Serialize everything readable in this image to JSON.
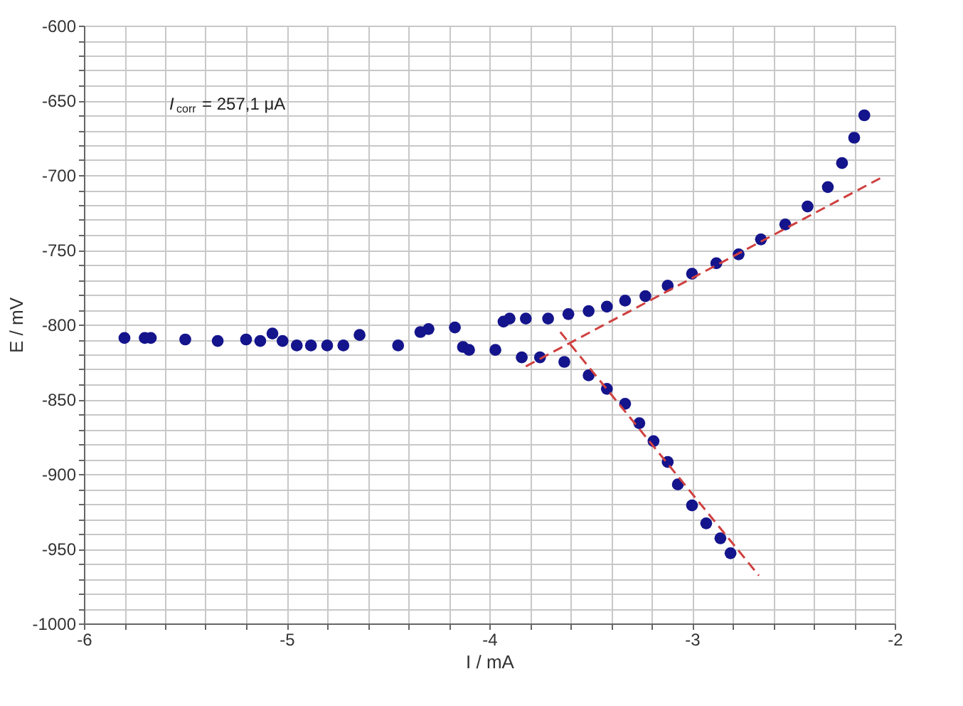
{
  "chart_data": {
    "type": "scatter",
    "xlabel": "I / mA",
    "ylabel": "E / mV",
    "annotations": [
      "I$_{corr}$ = 257,1 μA"
    ],
    "xlim": [
      -6,
      -2
    ],
    "ylim": [
      -1000,
      -600
    ],
    "xticks": [
      -6,
      {
        "value": -5.8,
        "label": null
      },
      {
        "value": -5.6,
        "label": null
      },
      {
        "value": -5.4,
        "label": null
      },
      {
        "value": -5.2,
        "label": null
      },
      -5,
      {
        "value": -4.8,
        "label": null
      },
      {
        "value": -4.6,
        "label": null
      },
      {
        "value": -4.4,
        "label": null
      },
      {
        "value": -4.2,
        "label": null
      },
      -4,
      {
        "value": -3.8,
        "label": null
      },
      {
        "value": -3.6,
        "label": null
      },
      {
        "value": -3.4,
        "label": null
      },
      {
        "value": -3.2,
        "label": null
      },
      -3,
      {
        "value": -2.8,
        "label": null
      },
      {
        "value": -2.6,
        "label": null
      },
      {
        "value": -2.4,
        "label": null
      },
      {
        "value": -2.2,
        "label": null
      },
      -2
    ],
    "yticks": [
      -1000,
      {
        "value": -990,
        "label": null
      },
      {
        "value": -980,
        "label": null
      },
      {
        "value": -970,
        "label": null
      },
      {
        "value": -960,
        "label": null
      },
      -950,
      {
        "value": -940,
        "label": null
      },
      {
        "value": -930,
        "label": null
      },
      {
        "value": -920,
        "label": null
      },
      {
        "value": -910,
        "label": null
      },
      -900,
      {
        "value": -890,
        "label": null
      },
      {
        "value": -880,
        "label": null
      },
      {
        "value": -870,
        "label": null
      },
      {
        "value": -860,
        "label": null
      },
      -850,
      {
        "value": -840,
        "label": null
      },
      {
        "value": -830,
        "label": null
      },
      {
        "value": -820,
        "label": null
      },
      {
        "value": -810,
        "label": null
      },
      -800,
      {
        "value": -790,
        "label": null
      },
      {
        "value": -780,
        "label": null
      },
      {
        "value": -770,
        "label": null
      },
      {
        "value": -760,
        "label": null
      },
      -750,
      {
        "value": -740,
        "label": null
      },
      {
        "value": -730,
        "label": null
      },
      {
        "value": -720,
        "label": null
      },
      {
        "value": -710,
        "label": null
      },
      -700,
      {
        "value": -690,
        "label": null
      },
      {
        "value": -680,
        "label": null
      },
      {
        "value": -670,
        "label": null
      },
      {
        "value": -660,
        "label": null
      },
      -650,
      {
        "value": -640,
        "label": null
      },
      {
        "value": -630,
        "label": null
      },
      {
        "value": -620,
        "label": null
      },
      {
        "value": -610,
        "label": null
      },
      -600
    ],
    "grid": true,
    "series": [
      {
        "type": "scatter",
        "color": "#14148c",
        "marker": "circle",
        "x": [
          -5.8,
          -5.7,
          -5.67,
          -5.5,
          -5.34,
          -5.2,
          -5.13,
          -5.07,
          -5.02,
          -4.95,
          -4.88,
          -4.8,
          -4.72,
          -4.64,
          -4.45,
          -4.34,
          -4.3,
          -4.17,
          -4.13,
          -4.1,
          -3.97,
          -3.93,
          -3.9,
          -3.82,
          -3.71,
          -3.61,
          -3.51,
          -3.42,
          -3.33,
          -3.23,
          -3.12,
          -3.0,
          -2.88,
          -2.77,
          -2.66,
          -2.54,
          -2.43,
          -2.33,
          -2.26,
          -2.2,
          -2.15,
          -3.84,
          -3.75,
          -3.63,
          -3.51,
          -3.42,
          -3.33,
          -3.26,
          -3.19,
          -3.12,
          -3.07,
          -3.0,
          -2.93,
          -2.86,
          -2.81
        ],
        "values": [
          -809,
          -809,
          -809,
          -810,
          -811,
          -810,
          -811,
          -806,
          -811,
          -814,
          -814,
          -814,
          -814,
          -807,
          -814,
          -805,
          -803,
          -802,
          -815,
          -817,
          -817,
          -798,
          -796,
          -796,
          -796,
          -793,
          -791,
          -788,
          -784,
          -781,
          -774,
          -766,
          -759,
          -753,
          -743,
          -733,
          -721,
          -708,
          -692,
          -675,
          -660,
          -822,
          -822,
          -825,
          -834,
          -843,
          -853,
          -866,
          -878,
          -892,
          -907,
          -921,
          -933,
          -943,
          -953
        ]
      },
      {
        "type": "line",
        "color": "#d04040",
        "line_style": "dashed",
        "marker": "none",
        "x": [
          -3.82,
          -2.07
        ],
        "values": [
          -828,
          -702
        ]
      },
      {
        "type": "line",
        "color": "#d04040",
        "line_style": "dashed",
        "marker": "none",
        "x": [
          -3.65,
          -2.67
        ],
        "values": [
          -805,
          -968
        ]
      }
    ]
  }
}
